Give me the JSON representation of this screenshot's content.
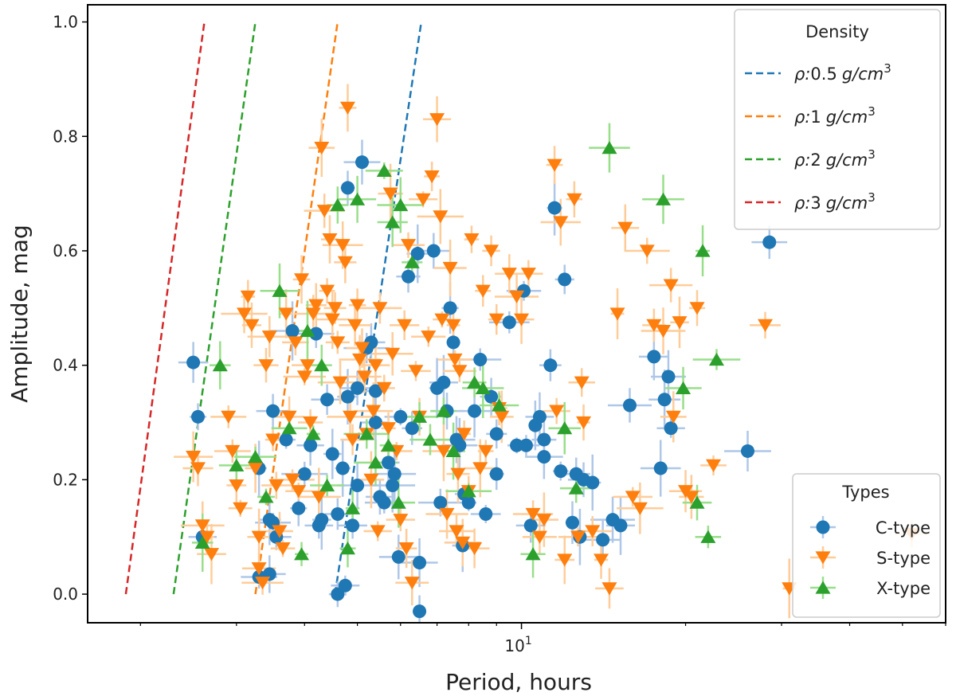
{
  "chart_data": {
    "type": "scatter",
    "xscale": "log",
    "xlabel": "Period, hours",
    "ylabel": "Amplitude, mag",
    "xlim": [
      1.6,
      60
    ],
    "ylim": [
      -0.05,
      1.03
    ],
    "x_major_ticks": [
      {
        "value": 10,
        "base": "10",
        "exp": "1"
      }
    ],
    "x_minor_ticks": [
      2,
      3,
      4,
      5,
      6,
      7,
      8,
      9,
      20,
      30,
      40,
      50,
      60
    ],
    "y_ticks": [
      {
        "value": 0.0,
        "label": "0.0"
      },
      {
        "value": 0.2,
        "label": "0.2"
      },
      {
        "value": 0.4,
        "label": "0.4"
      },
      {
        "value": 0.6,
        "label": "0.6"
      },
      {
        "value": 0.8,
        "label": "0.8"
      },
      {
        "value": 1.0,
        "label": "1.0"
      }
    ],
    "density_legend": {
      "title": "Density",
      "prefix": "ρ:",
      "unit_text": "g/cm",
      "unit_exp": "3",
      "location": "upper right"
    },
    "types_legend": {
      "title": "Types",
      "location": "lower right"
    },
    "density_lines": [
      {
        "label": "0.5",
        "color": "#1f77b4",
        "x": [
          4.55,
          6.55
        ],
        "y": [
          0.0,
          1.0
        ]
      },
      {
        "label": "1",
        "color": "#ff7f0e",
        "x": [
          3.25,
          4.6
        ],
        "y": [
          0.0,
          1.0
        ]
      },
      {
        "label": "2",
        "color": "#2ca02c",
        "x": [
          2.3,
          3.25
        ],
        "y": [
          0.0,
          1.0
        ]
      },
      {
        "label": "3",
        "color": "#d62728",
        "x": [
          1.88,
          2.62
        ],
        "y": [
          0.0,
          1.0
        ]
      }
    ],
    "series": [
      {
        "name": "C-type",
        "marker": "circle",
        "color": "#1f77b4",
        "errcolor": "#aec7e8",
        "points": [
          [
            2.5,
            0.405
          ],
          [
            2.55,
            0.31
          ],
          [
            2.6,
            0.1
          ],
          [
            3.3,
            0.22
          ],
          [
            3.5,
            0.32
          ],
          [
            3.45,
            0.13
          ],
          [
            3.5,
            0.125
          ],
          [
            3.55,
            0.1
          ],
          [
            3.3,
            0.03
          ],
          [
            3.45,
            0.035
          ],
          [
            3.7,
            0.27
          ],
          [
            3.8,
            0.46
          ],
          [
            3.9,
            0.15
          ],
          [
            4.0,
            0.21
          ],
          [
            4.1,
            0.26
          ],
          [
            4.2,
            0.455
          ],
          [
            4.3,
            0.13
          ],
          [
            4.25,
            0.12
          ],
          [
            4.4,
            0.34
          ],
          [
            4.5,
            0.245
          ],
          [
            4.6,
            0.14
          ],
          [
            4.7,
            0.22
          ],
          [
            4.8,
            0.345
          ],
          [
            4.9,
            0.12
          ],
          [
            5.0,
            0.36
          ],
          [
            5.0,
            0.19
          ],
          [
            4.6,
            0.0
          ],
          [
            4.75,
            0.015
          ],
          [
            4.8,
            0.71
          ],
          [
            5.1,
            0.755
          ],
          [
            5.2,
            0.43
          ],
          [
            5.3,
            0.44
          ],
          [
            5.4,
            0.3
          ],
          [
            5.5,
            0.17
          ],
          [
            5.4,
            0.355
          ],
          [
            5.6,
            0.16
          ],
          [
            5.7,
            0.23
          ],
          [
            5.85,
            0.21
          ],
          [
            5.8,
            0.19
          ],
          [
            5.95,
            0.065
          ],
          [
            6.0,
            0.31
          ],
          [
            6.2,
            0.555
          ],
          [
            6.3,
            0.29
          ],
          [
            6.5,
            0.055
          ],
          [
            6.45,
            0.595
          ],
          [
            6.5,
            -0.03
          ],
          [
            6.9,
            0.6
          ],
          [
            7.0,
            0.36
          ],
          [
            7.2,
            0.37
          ],
          [
            7.3,
            0.32
          ],
          [
            7.4,
            0.5
          ],
          [
            7.1,
            0.16
          ],
          [
            7.5,
            0.44
          ],
          [
            7.6,
            0.27
          ],
          [
            7.7,
            0.26
          ],
          [
            7.8,
            0.085
          ],
          [
            7.85,
            0.175
          ],
          [
            8.0,
            0.16
          ],
          [
            8.2,
            0.32
          ],
          [
            8.4,
            0.41
          ],
          [
            8.6,
            0.14
          ],
          [
            8.8,
            0.345
          ],
          [
            9.0,
            0.21
          ],
          [
            9.0,
            0.28
          ],
          [
            9.5,
            0.475
          ],
          [
            9.8,
            0.26
          ],
          [
            10.1,
            0.53
          ],
          [
            10.2,
            0.26
          ],
          [
            10.4,
            0.12
          ],
          [
            10.6,
            0.295
          ],
          [
            10.8,
            0.31
          ],
          [
            11.0,
            0.27
          ],
          [
            11.0,
            0.24
          ],
          [
            11.3,
            0.4
          ],
          [
            11.5,
            0.675
          ],
          [
            11.8,
            0.215
          ],
          [
            12.0,
            0.55
          ],
          [
            12.4,
            0.125
          ],
          [
            12.6,
            0.21
          ],
          [
            12.8,
            0.1
          ],
          [
            13.0,
            0.2
          ],
          [
            13.5,
            0.195
          ],
          [
            14.1,
            0.095
          ],
          [
            14.7,
            0.13
          ],
          [
            15.2,
            0.12
          ],
          [
            15.8,
            0.33
          ],
          [
            17.5,
            0.415
          ],
          [
            18.0,
            0.22
          ],
          [
            18.3,
            0.34
          ],
          [
            18.6,
            0.38
          ],
          [
            18.8,
            0.29
          ],
          [
            26.0,
            0.25
          ],
          [
            28.5,
            0.615
          ]
        ]
      },
      {
        "name": "S-type",
        "marker": "triangle-down",
        "color": "#ff7f0e",
        "errcolor": "#ffcc99",
        "points": [
          [
            2.5,
            0.24
          ],
          [
            2.55,
            0.22
          ],
          [
            2.6,
            0.12
          ],
          [
            2.65,
            0.1
          ],
          [
            2.7,
            0.07
          ],
          [
            2.9,
            0.31
          ],
          [
            2.95,
            0.25
          ],
          [
            3.0,
            0.19
          ],
          [
            3.05,
            0.15
          ],
          [
            3.1,
            0.49
          ],
          [
            3.15,
            0.52
          ],
          [
            3.2,
            0.47
          ],
          [
            3.25,
            0.22
          ],
          [
            3.3,
            0.1
          ],
          [
            3.3,
            0.045
          ],
          [
            3.35,
            0.02
          ],
          [
            3.4,
            0.4
          ],
          [
            3.45,
            0.45
          ],
          [
            3.5,
            0.27
          ],
          [
            3.55,
            0.19
          ],
          [
            3.6,
            0.11
          ],
          [
            3.65,
            0.08
          ],
          [
            3.7,
            0.49
          ],
          [
            3.75,
            0.31
          ],
          [
            3.8,
            0.2
          ],
          [
            3.85,
            0.44
          ],
          [
            3.9,
            0.18
          ],
          [
            3.95,
            0.55
          ],
          [
            4.0,
            0.38
          ],
          [
            4.05,
            0.4
          ],
          [
            4.1,
            0.3
          ],
          [
            4.15,
            0.49
          ],
          [
            4.2,
            0.505
          ],
          [
            4.25,
            0.17
          ],
          [
            4.3,
            0.78
          ],
          [
            4.35,
            0.67
          ],
          [
            4.4,
            0.53
          ],
          [
            4.45,
            0.62
          ],
          [
            4.5,
            0.48
          ],
          [
            4.55,
            0.5
          ],
          [
            4.6,
            0.44
          ],
          [
            4.65,
            0.37
          ],
          [
            4.7,
            0.61
          ],
          [
            4.75,
            0.58
          ],
          [
            4.8,
            0.85
          ],
          [
            4.85,
            0.31
          ],
          [
            4.9,
            0.27
          ],
          [
            4.95,
            0.47
          ],
          [
            5.0,
            0.505
          ],
          [
            5.05,
            0.41
          ],
          [
            5.1,
            0.43
          ],
          [
            5.15,
            0.38
          ],
          [
            5.2,
            0.28
          ],
          [
            5.3,
            0.2
          ],
          [
            5.35,
            0.32
          ],
          [
            5.4,
            0.4
          ],
          [
            5.45,
            0.11
          ],
          [
            5.5,
            0.5
          ],
          [
            5.6,
            0.36
          ],
          [
            5.7,
            0.29
          ],
          [
            5.75,
            0.7
          ],
          [
            5.8,
            0.42
          ],
          [
            5.9,
            0.25
          ],
          [
            6.0,
            0.13
          ],
          [
            6.1,
            0.47
          ],
          [
            6.15,
            0.08
          ],
          [
            6.2,
            0.61
          ],
          [
            6.3,
            0.02
          ],
          [
            6.4,
            0.39
          ],
          [
            6.5,
            0.31
          ],
          [
            6.6,
            0.69
          ],
          [
            6.75,
            0.45
          ],
          [
            6.85,
            0.73
          ],
          [
            7.0,
            0.83
          ],
          [
            7.1,
            0.66
          ],
          [
            7.15,
            0.48
          ],
          [
            7.2,
            0.25
          ],
          [
            7.3,
            0.14
          ],
          [
            7.4,
            0.57
          ],
          [
            7.5,
            0.47
          ],
          [
            7.55,
            0.41
          ],
          [
            7.6,
            0.11
          ],
          [
            7.65,
            0.21
          ],
          [
            7.7,
            0.39
          ],
          [
            7.8,
            0.09
          ],
          [
            7.85,
            0.28
          ],
          [
            8.0,
            0.18
          ],
          [
            8.1,
            0.62
          ],
          [
            8.2,
            0.08
          ],
          [
            8.4,
            0.22
          ],
          [
            8.5,
            0.53
          ],
          [
            8.6,
            0.25
          ],
          [
            8.8,
            0.6
          ],
          [
            9.0,
            0.48
          ],
          [
            9.1,
            0.325
          ],
          [
            9.2,
            0.31
          ],
          [
            9.5,
            0.56
          ],
          [
            9.8,
            0.52
          ],
          [
            10.0,
            0.48
          ],
          [
            10.3,
            0.56
          ],
          [
            10.5,
            0.14
          ],
          [
            10.8,
            0.1
          ],
          [
            11.0,
            0.13
          ],
          [
            11.5,
            0.75
          ],
          [
            11.6,
            0.32
          ],
          [
            11.8,
            0.65
          ],
          [
            12.0,
            0.06
          ],
          [
            12.5,
            0.69
          ],
          [
            12.7,
            0.1
          ],
          [
            12.9,
            0.37
          ],
          [
            13.0,
            0.3
          ],
          [
            13.5,
            0.11
          ],
          [
            14.0,
            0.06
          ],
          [
            14.5,
            0.01
          ],
          [
            15.0,
            0.49
          ],
          [
            15.5,
            0.64
          ],
          [
            16.0,
            0.17
          ],
          [
            16.5,
            0.15
          ],
          [
            17.0,
            0.6
          ],
          [
            17.5,
            0.47
          ],
          [
            18.2,
            0.46
          ],
          [
            18.8,
            0.54
          ],
          [
            19.0,
            0.31
          ],
          [
            19.5,
            0.475
          ],
          [
            20.0,
            0.18
          ],
          [
            20.5,
            0.17
          ],
          [
            21.0,
            0.5
          ],
          [
            22.5,
            0.225
          ],
          [
            28.0,
            0.47
          ],
          [
            31.0,
            0.01
          ],
          [
            52.0,
            0.105
          ]
        ]
      },
      {
        "name": "X-type",
        "marker": "triangle-up",
        "color": "#2ca02c",
        "errcolor": "#98df8a",
        "points": [
          [
            2.6,
            0.09
          ],
          [
            2.8,
            0.4
          ],
          [
            3.0,
            0.225
          ],
          [
            3.25,
            0.24
          ],
          [
            3.4,
            0.17
          ],
          [
            3.6,
            0.53
          ],
          [
            3.75,
            0.29
          ],
          [
            3.95,
            0.07
          ],
          [
            4.05,
            0.46
          ],
          [
            4.15,
            0.28
          ],
          [
            4.3,
            0.4
          ],
          [
            4.4,
            0.19
          ],
          [
            4.6,
            0.68
          ],
          [
            4.8,
            0.08
          ],
          [
            4.9,
            0.15
          ],
          [
            5.0,
            0.69
          ],
          [
            5.2,
            0.28
          ],
          [
            5.4,
            0.23
          ],
          [
            5.6,
            0.74
          ],
          [
            5.7,
            0.26
          ],
          [
            5.8,
            0.65
          ],
          [
            5.95,
            0.16
          ],
          [
            6.0,
            0.68
          ],
          [
            6.3,
            0.58
          ],
          [
            6.5,
            0.31
          ],
          [
            6.8,
            0.27
          ],
          [
            7.2,
            0.32
          ],
          [
            7.5,
            0.25
          ],
          [
            8.0,
            0.18
          ],
          [
            8.2,
            0.37
          ],
          [
            8.5,
            0.36
          ],
          [
            9.1,
            0.33
          ],
          [
            10.5,
            0.07
          ],
          [
            12.0,
            0.29
          ],
          [
            12.6,
            0.185
          ],
          [
            14.5,
            0.78
          ],
          [
            18.2,
            0.69
          ],
          [
            19.8,
            0.36
          ],
          [
            21.5,
            0.6
          ],
          [
            22.8,
            0.41
          ],
          [
            21.0,
            0.16
          ],
          [
            22.0,
            0.1
          ]
        ]
      }
    ]
  }
}
